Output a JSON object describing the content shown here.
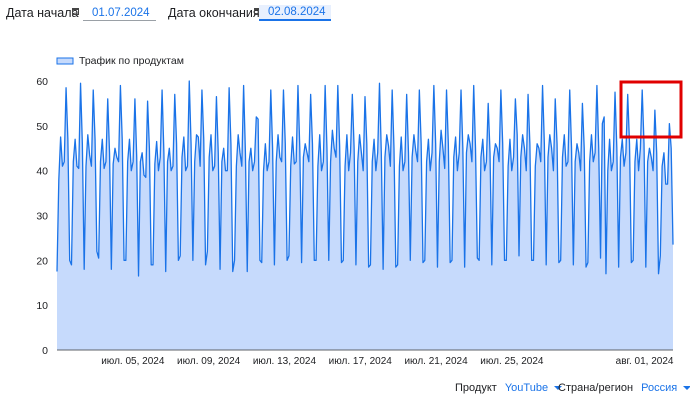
{
  "filters": {
    "start_label": "Дата начала",
    "start_value": "01.07.2024",
    "end_label": "Дата окончания",
    "end_value": "02.08.2024"
  },
  "footer": {
    "product_label": "Продукт",
    "product_value": "YouTube",
    "region_label": "Страна/регион",
    "region_value": "Россия"
  },
  "colors": {
    "line": "#1a73e8",
    "area": "#c6dafc",
    "highlight_box": "#e00000"
  },
  "chart_data": {
    "type": "area",
    "legend": "Трафик по продуктам",
    "legend_position": "top-left",
    "grid": false,
    "ylim": [
      0,
      60
    ],
    "yticks": [
      0,
      10,
      20,
      30,
      40,
      50,
      60
    ],
    "xticks": [
      "июл. 05, 2024",
      "июл. 09, 2024",
      "июл. 13, 2024",
      "июл. 17, 2024",
      "июл. 21, 2024",
      "июл. 25, 2024",
      "авг. 01, 2024"
    ],
    "series": [
      {
        "name": "Трафик по продуктам",
        "values": [
          17.5,
          38,
          47.5,
          41,
          42,
          58.5,
          47,
          20,
          19,
          42,
          47,
          41,
          40.5,
          59.5,
          46,
          18,
          41,
          48,
          43.5,
          41,
          58,
          47,
          22,
          20.5,
          42,
          47,
          40.5,
          42,
          56,
          44,
          18,
          41.5,
          45,
          43,
          42,
          59,
          47,
          20,
          20,
          42,
          47,
          40,
          42,
          56,
          43,
          16.5,
          42,
          44,
          39,
          38.5,
          55.5,
          45,
          19,
          19,
          41.5,
          46.5,
          40,
          43,
          58,
          44,
          17.5,
          42,
          45,
          40,
          41,
          57,
          46,
          20,
          21,
          43,
          47.5,
          40,
          41,
          60,
          46,
          20,
          42,
          48,
          47.5,
          41,
          58,
          47,
          19,
          22,
          43,
          48,
          40,
          41,
          56.5,
          44,
          18,
          42,
          45,
          40,
          40,
          58.5,
          46,
          17.5,
          20,
          41,
          48,
          44,
          41,
          59,
          44,
          17.5,
          42,
          45,
          40,
          42,
          52,
          51.5,
          20,
          19.5,
          40,
          46,
          40,
          42,
          58,
          45,
          19,
          42,
          48,
          43,
          42,
          58,
          46,
          20,
          21,
          41,
          47.5,
          41.5,
          42,
          59,
          45,
          19.5,
          43,
          46,
          44,
          42,
          57,
          46,
          20,
          20,
          41,
          48,
          40,
          42,
          59,
          45,
          20,
          42,
          49,
          45,
          43,
          59,
          45.5,
          19.5,
          20,
          41,
          48,
          40,
          44,
          57,
          45,
          19,
          42,
          48,
          44,
          40,
          56.5,
          46,
          18.5,
          19,
          42,
          47,
          40,
          44,
          59.5,
          44,
          18,
          43,
          48,
          45.5,
          41,
          58,
          45,
          18.5,
          19,
          41,
          47.5,
          40,
          42,
          57,
          44,
          20,
          43,
          48,
          44.5,
          42,
          58,
          46,
          19.5,
          20,
          42,
          47,
          40,
          44,
          59,
          46,
          18.5,
          42,
          49,
          45,
          40.5,
          58,
          46,
          19.5,
          20,
          43,
          47.5,
          40,
          44,
          58,
          45,
          18.5,
          44,
          48,
          46,
          42,
          59,
          45,
          20.5,
          20,
          43,
          47,
          40,
          42,
          55,
          44,
          19,
          43,
          46,
          45,
          42,
          58,
          46,
          20,
          20,
          41,
          47,
          40,
          43,
          56,
          48,
          21,
          43,
          48,
          45,
          40,
          57,
          46,
          20,
          20,
          41,
          46,
          45,
          42,
          59,
          46,
          19,
          43,
          48,
          45,
          40,
          56,
          46,
          19.5,
          20,
          43,
          48,
          41,
          42,
          58,
          45,
          19,
          42,
          46,
          44,
          40,
          55,
          45,
          18.5,
          19.5,
          42,
          48,
          42,
          44,
          59,
          45,
          20.5,
          50.5,
          52,
          17,
          40,
          47,
          40,
          42,
          57.5,
          45,
          18.5,
          43,
          47,
          41,
          44,
          57,
          46,
          19.5,
          20,
          42,
          47,
          40,
          45,
          58,
          46,
          18.5,
          42,
          45,
          43,
          40,
          53.5,
          44,
          17,
          21,
          41,
          44,
          37,
          37,
          50.5,
          45,
          23.5
        ]
      }
    ]
  }
}
